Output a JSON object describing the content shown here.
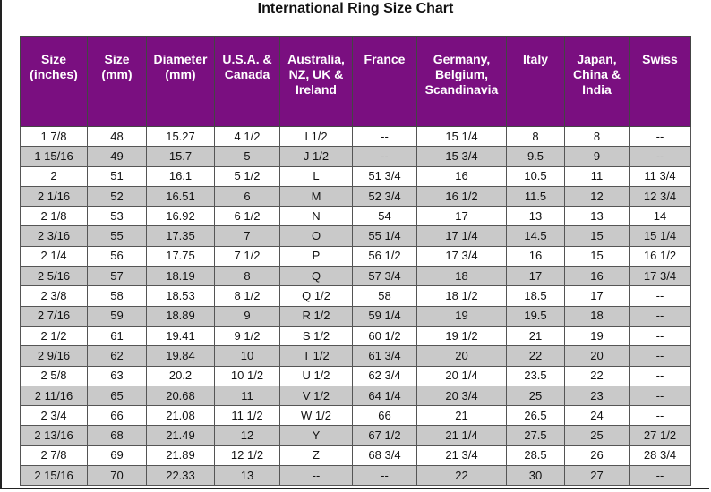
{
  "title": "International Ring Size Chart",
  "table": {
    "header": [
      "Size (inches)",
      "Size (mm)",
      "Diameter (mm)",
      "U.S.A. & Canada",
      "Australia, NZ, UK & Ireland",
      "France",
      "Germany, Belgium, Scandinavia",
      "Italy",
      "Japan, China & India",
      "Swiss"
    ],
    "rows": [
      [
        "1 7/8",
        "48",
        "15.27",
        "4 1/2",
        "I 1/2",
        "--",
        "15 1/4",
        "8",
        "8",
        "--"
      ],
      [
        "1 15/16",
        "49",
        "15.7",
        "5",
        "J 1/2",
        "--",
        "15 3/4",
        "9.5",
        "9",
        "--"
      ],
      [
        "2",
        "51",
        "16.1",
        "5 1/2",
        "L",
        "51 3/4",
        "16",
        "10.5",
        "11",
        "11 3/4"
      ],
      [
        "2 1/16",
        "52",
        "16.51",
        "6",
        "M",
        "52 3/4",
        "16 1/2",
        "11.5",
        "12",
        "12 3/4"
      ],
      [
        "2 1/8",
        "53",
        "16.92",
        "6 1/2",
        "N",
        "54",
        "17",
        "13",
        "13",
        "14"
      ],
      [
        "2 3/16",
        "55",
        "17.35",
        "7",
        "O",
        "55 1/4",
        "17 1/4",
        "14.5",
        "15",
        "15 1/4"
      ],
      [
        "2 1/4",
        "56",
        "17.75",
        "7 1/2",
        "P",
        "56 1/2",
        "17 3/4",
        "16",
        "15",
        "16 1/2"
      ],
      [
        "2 5/16",
        "57",
        "18.19",
        "8",
        "Q",
        "57 3/4",
        "18",
        "17",
        "16",
        "17 3/4"
      ],
      [
        "2 3/8",
        "58",
        "18.53",
        "8 1/2",
        "Q 1/2",
        "58",
        "18 1/2",
        "18.5",
        "17",
        "--"
      ],
      [
        "2 7/16",
        "59",
        "18.89",
        "9",
        "R 1/2",
        "59 1/4",
        "19",
        "19.5",
        "18",
        "--"
      ],
      [
        "2 1/2",
        "61",
        "19.41",
        "9 1/2",
        "S 1/2",
        "60 1/2",
        "19 1/2",
        "21",
        "19",
        "--"
      ],
      [
        "2 9/16",
        "62",
        "19.84",
        "10",
        "T 1/2",
        "61 3/4",
        "20",
        "22",
        "20",
        "--"
      ],
      [
        "2 5/8",
        "63",
        "20.2",
        "10 1/2",
        "U 1/2",
        "62 3/4",
        "20 1/4",
        "23.5",
        "22",
        "--"
      ],
      [
        "2 11/16",
        "65",
        "20.68",
        "11",
        "V 1/2",
        "64 1/4",
        "20 3/4",
        "25",
        "23",
        "--"
      ],
      [
        "2 3/4",
        "66",
        "21.08",
        "11 1/2",
        "W 1/2",
        "66",
        "21",
        "26.5",
        "24",
        "--"
      ],
      [
        "2 13/16",
        "68",
        "21.49",
        "12",
        "Y",
        "67 1/2",
        "21 1/4",
        "27.5",
        "25",
        "27 1/2"
      ],
      [
        "2 7/8",
        "69",
        "21.89",
        "12 1/2",
        "Z",
        "68 3/4",
        "21 3/4",
        "28.5",
        "26",
        "28 3/4"
      ],
      [
        "2 15/16",
        "70",
        "22.33",
        "13",
        "--",
        "--",
        "22",
        "30",
        "27",
        "--"
      ]
    ]
  }
}
